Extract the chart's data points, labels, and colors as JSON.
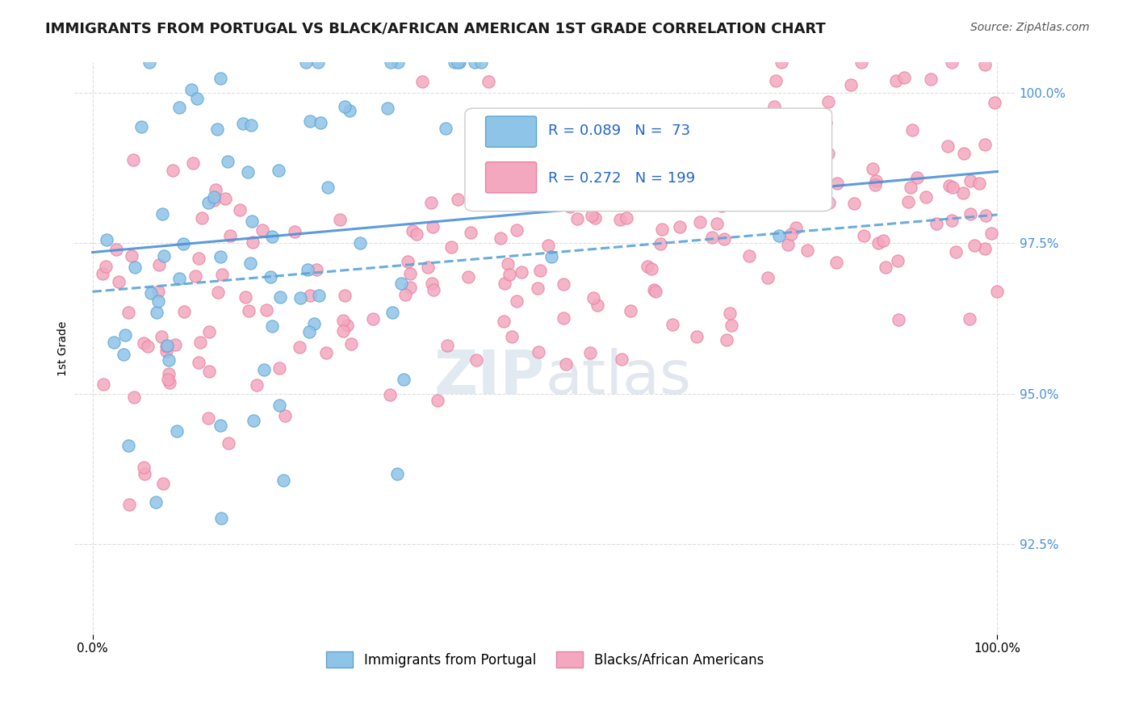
{
  "title": "IMMIGRANTS FROM PORTUGAL VS BLACK/AFRICAN AMERICAN 1ST GRADE CORRELATION CHART",
  "source": "Source: ZipAtlas.com",
  "ylabel": "1st Grade",
  "legend_blue_r": "0.089",
  "legend_blue_n": "73",
  "legend_pink_r": "0.272",
  "legend_pink_n": "199",
  "legend_blue_label": "Immigrants from Portugal",
  "legend_pink_label": "Blacks/African Americans",
  "blue_color": "#8ec4e8",
  "blue_edge": "#5ba3d0",
  "pink_color": "#f4a8bf",
  "pink_edge": "#e87fa0",
  "trend_blue_color": "#4a90d9",
  "trend_pink_color": "#5ba3d9",
  "y_tick_color": "#4a90d9",
  "title_color": "#1a1a1a",
  "source_color": "#555555",
  "watermark_zip_color": "#c5d5e5",
  "watermark_atlas_color": "#c5cfe0",
  "ylim": [
    0.91,
    1.005
  ],
  "xlim": [
    -0.02,
    1.02
  ],
  "y_ticks": [
    0.925,
    0.95,
    0.975,
    1.0
  ]
}
